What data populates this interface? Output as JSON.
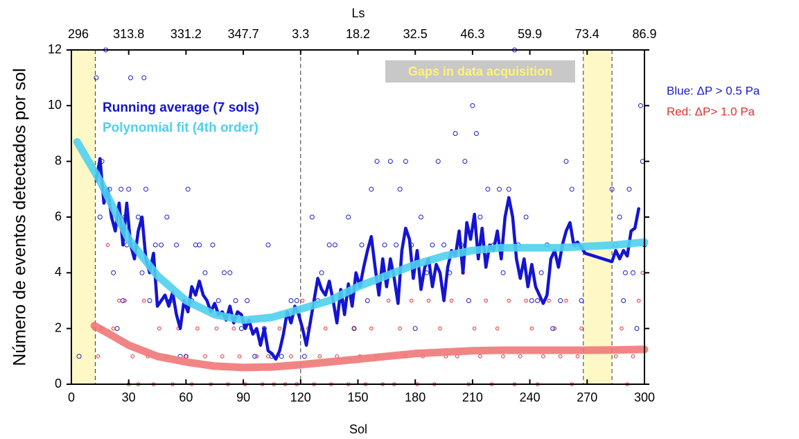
{
  "chart_data": {
    "type": "scatter",
    "ylabel": "Número de eventos detectados por sol",
    "xlabel": "Sol",
    "x2label": "Ls",
    "xlim": [
      0,
      300
    ],
    "ylim": [
      0,
      12
    ],
    "xticks": [
      0,
      30,
      60,
      90,
      120,
      150,
      180,
      210,
      240,
      270,
      300
    ],
    "yticks": [
      0,
      2,
      4,
      6,
      8,
      10,
      12
    ],
    "x2ticks": [
      {
        "value": 0,
        "label": "296"
      },
      {
        "value": 30,
        "label": "313.8"
      },
      {
        "value": 60,
        "label": "331.2"
      },
      {
        "value": 90,
        "label": "347.7"
      },
      {
        "value": 120,
        "label": "3.3"
      },
      {
        "value": 150,
        "label": "18.2"
      },
      {
        "value": 180,
        "label": "32.5"
      },
      {
        "value": 210,
        "label": "46.3"
      },
      {
        "value": 240,
        "label": "59.9"
      },
      {
        "value": 270,
        "label": "73.4"
      },
      {
        "value": 300,
        "label": "86.9"
      }
    ],
    "gaps": [
      [
        0,
        12.5
      ],
      [
        268,
        283
      ]
    ],
    "gap_color": "#fdf8c6",
    "vlines": [
      12.5,
      120,
      268,
      283
    ],
    "annotation": "Gaps in data acquisition",
    "series": [
      {
        "name": "Blue: ΔP > 0.5 Pa",
        "type": "scatter",
        "color": "#1a1acc",
        "x": [
          4,
          13,
          15,
          16,
          17,
          18,
          20,
          22,
          24,
          26,
          27,
          28,
          29,
          30,
          31,
          33,
          35,
          37,
          38,
          39,
          41,
          44,
          47,
          50,
          52,
          55,
          57,
          60,
          61,
          63,
          65,
          67,
          70,
          74,
          77,
          80,
          83,
          86,
          89,
          92,
          96,
          101,
          103,
          105,
          110,
          115,
          118,
          122,
          126,
          129,
          131,
          135,
          138,
          141,
          145,
          148,
          152,
          155,
          157,
          160,
          164,
          167,
          170,
          172,
          175,
          178,
          180,
          183,
          186,
          189,
          192,
          195,
          198,
          201,
          204,
          206,
          208,
          210,
          212,
          214,
          218,
          221,
          224,
          226,
          229,
          232,
          234,
          238,
          241,
          244,
          246,
          249,
          252,
          256,
          259,
          262,
          264,
          267,
          283,
          285,
          287,
          289,
          290,
          292,
          294,
          296,
          298,
          299,
          300
        ],
        "values": [
          1,
          11,
          6,
          8,
          7,
          12,
          7,
          4,
          2,
          7,
          3,
          6,
          5,
          7,
          11,
          5,
          6,
          4,
          11,
          7,
          3,
          5,
          5,
          6,
          3,
          5,
          1,
          1,
          7,
          3,
          5,
          5,
          4,
          5,
          3,
          4,
          4,
          3,
          2,
          3,
          1,
          2,
          5,
          1,
          1,
          3,
          3,
          1,
          6,
          3,
          4,
          5,
          5,
          3,
          6,
          2,
          5,
          3,
          7,
          8,
          5,
          8,
          5,
          7,
          8,
          5,
          2,
          6,
          4,
          5,
          8,
          5,
          4,
          9,
          5,
          8,
          3,
          10,
          9,
          6,
          7,
          5,
          7,
          4,
          7,
          12,
          5,
          6,
          3,
          3,
          4,
          5,
          2,
          3,
          8,
          7,
          5,
          3,
          7,
          5,
          6,
          3,
          4,
          7,
          4,
          2,
          10,
          8,
          5
        ]
      },
      {
        "name": "Red: ΔP> 1.0 Pa",
        "type": "scatter",
        "color": "#e03030",
        "x": [
          12,
          14,
          16,
          19,
          22,
          25,
          28,
          30,
          32,
          35,
          38,
          40,
          43,
          46,
          50,
          53,
          56,
          60,
          63,
          66,
          70,
          73,
          76,
          79,
          82,
          85,
          88,
          91,
          94,
          97,
          100,
          103,
          106,
          109,
          112,
          115,
          118,
          121,
          124,
          127,
          130,
          133,
          136,
          139,
          142,
          145,
          148,
          151,
          154,
          157,
          160,
          163,
          166,
          169,
          172,
          175,
          178,
          181,
          184,
          187,
          190,
          193,
          196,
          199,
          202,
          205,
          208,
          211,
          214,
          217,
          220,
          223,
          226,
          229,
          232,
          235,
          238,
          241,
          244,
          247,
          250,
          253,
          256,
          259,
          262,
          265,
          267,
          285,
          288,
          291,
          294,
          297,
          299
        ],
        "values": [
          2,
          1,
          2,
          5,
          2,
          3,
          3,
          0,
          1,
          0,
          3,
          1,
          0,
          2,
          1,
          0,
          2,
          1,
          0,
          2,
          1,
          0,
          2,
          1,
          0,
          2,
          1,
          0,
          2,
          1,
          0,
          1,
          0,
          2,
          0,
          1,
          0,
          3,
          2,
          0,
          1,
          2,
          0,
          1,
          3,
          0,
          2,
          1,
          0,
          2,
          1,
          0,
          3,
          0,
          2,
          1,
          3,
          0,
          1,
          3,
          0,
          2,
          1,
          3,
          1,
          4,
          0,
          2,
          1,
          3,
          0,
          2,
          1,
          3,
          0,
          1,
          3,
          2,
          0,
          1,
          3,
          2,
          1,
          3,
          0,
          1,
          2,
          1,
          2,
          0,
          1,
          3,
          4
        ]
      },
      {
        "name": "Running average (7 sols)",
        "type": "line",
        "color": "#1414d2",
        "x": [
          13,
          15,
          17,
          19,
          21,
          23,
          25,
          27,
          29,
          31,
          33,
          35,
          37,
          39,
          41,
          43,
          45,
          47,
          49,
          51,
          53,
          55,
          57,
          59,
          61,
          63,
          65,
          67,
          69,
          71,
          73,
          75,
          77,
          79,
          81,
          83,
          85,
          87,
          89,
          91,
          93,
          95,
          97,
          99,
          101,
          103,
          105,
          107,
          109,
          111,
          113,
          115,
          117,
          119,
          121,
          123,
          125,
          127,
          129,
          131,
          133,
          135,
          137,
          139,
          141,
          143,
          145,
          147,
          149,
          151,
          153,
          155,
          157,
          159,
          161,
          163,
          165,
          167,
          169,
          171,
          173,
          175,
          177,
          179,
          181,
          183,
          185,
          187,
          189,
          191,
          193,
          195,
          197,
          199,
          201,
          203,
          205,
          207,
          209,
          211,
          213,
          215,
          217,
          219,
          221,
          223,
          225,
          227,
          229,
          231,
          233,
          235,
          237,
          239,
          241,
          243,
          245,
          247,
          249,
          251,
          253,
          255,
          257,
          259,
          261,
          263,
          265,
          267,
          269,
          283,
          285,
          287,
          289,
          291,
          293,
          295,
          297
        ],
        "values": [
          7.3,
          8.1,
          6.5,
          7,
          6,
          5.5,
          6.5,
          5,
          6.5,
          5,
          4.5,
          5.5,
          6,
          4.5,
          4,
          4.7,
          2.8,
          3,
          3.2,
          2.8,
          3.3,
          2.5,
          2,
          3,
          2.6,
          3.5,
          3.2,
          3.7,
          3.2,
          3,
          2.6,
          2.9,
          2.5,
          2.6,
          2.3,
          2.8,
          2.2,
          2.6,
          2.5,
          2,
          2.3,
          1.8,
          2,
          1.4,
          2,
          1.2,
          1.1,
          0.9,
          1.2,
          1.8,
          2.6,
          2.2,
          2.8,
          2.5,
          2,
          1.4,
          2.2,
          3,
          3.8,
          3.4,
          3.2,
          3.7,
          3,
          2.2,
          3.4,
          2.5,
          3.6,
          2.8,
          4,
          3.5,
          4.2,
          4.8,
          5.3,
          4.2,
          3.2,
          4.5,
          3.5,
          4.5,
          3.8,
          2.9,
          4.8,
          5.6,
          5.2,
          3.8,
          4.8,
          3.4,
          4.2,
          4.5,
          3.5,
          4.3,
          4,
          3,
          4.2,
          4.8,
          4.6,
          5.5,
          4,
          5.8,
          5.2,
          6.1,
          4.5,
          5.6,
          4.2,
          5,
          4.8,
          5.5,
          4.5,
          6,
          6.7,
          6,
          4.5,
          3.8,
          4.5,
          3.5,
          4.3,
          3.5,
          3.2,
          2.9,
          3.2,
          4.5,
          4.8,
          4.2,
          5,
          5.5,
          5.8,
          5,
          5.1,
          4.9,
          4.7,
          4.4,
          4.8,
          4.5,
          4.8,
          4.6,
          5.5,
          5.6,
          6.3
        ]
      },
      {
        "name": "Polynomial fit (4th order)",
        "type": "fit",
        "color": "#4fd0ee",
        "x": [
          3,
          15,
          30,
          45,
          60,
          75,
          90,
          105,
          120,
          135,
          150,
          165,
          180,
          195,
          210,
          225,
          240,
          255,
          270,
          285,
          300
        ],
        "values": [
          8.7,
          7.3,
          5.2,
          3.9,
          3,
          2.5,
          2.3,
          2.4,
          2.7,
          3,
          3.5,
          3.9,
          4.3,
          4.6,
          4.8,
          4.9,
          4.9,
          4.9,
          4.95,
          5,
          5.1
        ]
      },
      {
        "type": "fit",
        "color": "#f07878",
        "x": [
          12,
          20,
          30,
          45,
          60,
          75,
          90,
          105,
          120,
          135,
          150,
          165,
          180,
          195,
          210,
          225,
          240,
          255,
          270,
          285,
          300
        ],
        "values": [
          2.1,
          1.8,
          1.4,
          1,
          0.8,
          0.65,
          0.6,
          0.62,
          0.7,
          0.8,
          0.9,
          1,
          1.1,
          1.15,
          1.2,
          1.22,
          1.22,
          1.22,
          1.22,
          1.23,
          1.25
        ]
      }
    ]
  }
}
